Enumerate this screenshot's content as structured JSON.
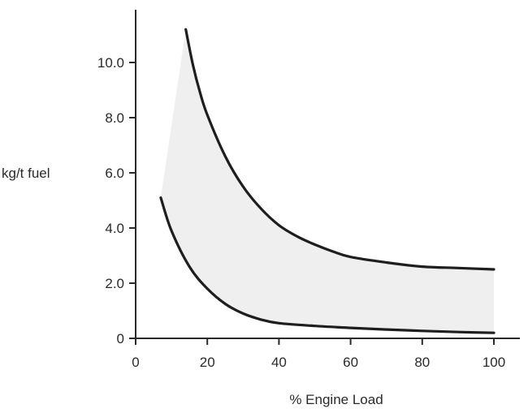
{
  "chart_data": {
    "type": "area",
    "title": "",
    "xlabel": "% Engine Load",
    "ylabel": "kg/t fuel",
    "xlim": [
      0,
      100
    ],
    "ylim": [
      0,
      11.6
    ],
    "x_ticks": [
      "0",
      "20",
      "40",
      "60",
      "80",
      "100"
    ],
    "y_ticks": [
      "0",
      "2.0",
      "4.0",
      "6.0",
      "8.0",
      "10.0"
    ],
    "grid": false,
    "legend": "none",
    "colors": {
      "curve": "#1e1e1e",
      "band": "#ececec",
      "axis": "#2a2a2a"
    },
    "series": [
      {
        "x": [
          14,
          16,
          18,
          20,
          25,
          30,
          35,
          40,
          45,
          50,
          55,
          60,
          70,
          80,
          90,
          100
        ],
        "y": [
          11.2,
          9.9,
          8.9,
          8.1,
          6.6,
          5.5,
          4.7,
          4.1,
          3.7,
          3.4,
          3.15,
          2.95,
          2.75,
          2.6,
          2.55,
          2.5
        ]
      },
      {
        "x": [
          7,
          10,
          15,
          20,
          25,
          30,
          35,
          40,
          50,
          60,
          70,
          80,
          90,
          100
        ],
        "y": [
          5.1,
          3.9,
          2.6,
          1.8,
          1.25,
          0.9,
          0.68,
          0.55,
          0.45,
          0.38,
          0.32,
          0.27,
          0.23,
          0.2
        ]
      }
    ]
  }
}
